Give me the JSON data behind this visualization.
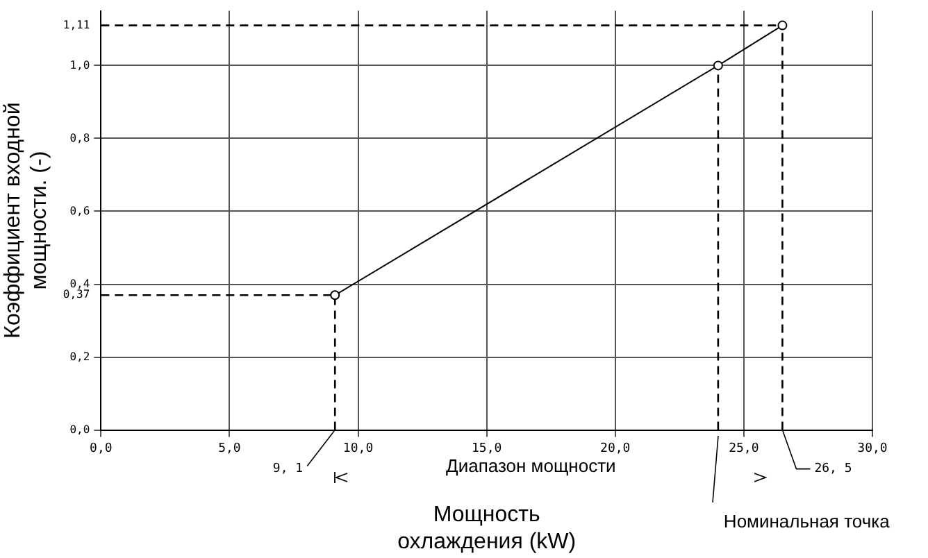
{
  "chart_data": {
    "type": "line",
    "xlabel": "Мощность охлаждения (kW)",
    "ylabel": "Коэффициент входной мощности. (-)",
    "xlim": [
      0,
      30
    ],
    "ylim": [
      0,
      1.15
    ],
    "xticks": [
      {
        "value": 0,
        "label": "0,0"
      },
      {
        "value": 5,
        "label": "5,0"
      },
      {
        "value": 10,
        "label": "10,0"
      },
      {
        "value": 15,
        "label": "15,0"
      },
      {
        "value": 20,
        "label": "20,0"
      },
      {
        "value": 25,
        "label": "25,0"
      },
      {
        "value": 30,
        "label": "30,0"
      }
    ],
    "yticks": [
      {
        "value": 0,
        "label": "0,0"
      },
      {
        "value": 0.2,
        "label": "0,2"
      },
      {
        "value": 0.37,
        "label": "0,37"
      },
      {
        "value": 0.4,
        "label": "0,4"
      },
      {
        "value": 0.6,
        "label": "0,6"
      },
      {
        "value": 0.8,
        "label": "0,8"
      },
      {
        "value": 1.0,
        "label": "1,0"
      },
      {
        "value": 1.11,
        "label": "1,11"
      }
    ],
    "series": [
      {
        "color": "#000000",
        "x": [
          9.1,
          24,
          26.5
        ],
        "values": [
          0.37,
          1.0,
          1.11
        ]
      }
    ],
    "marker": "circle",
    "line_style": "solid",
    "grid": true,
    "legend": false,
    "ref_lines": [
      {
        "axis": "y",
        "value": 0.37,
        "line_style": "dashed"
      },
      {
        "axis": "y",
        "value": 1.11,
        "line_style": "dashed"
      },
      {
        "axis": "x",
        "value": 9.1,
        "line_style": "dashed"
      },
      {
        "axis": "x",
        "value": 24,
        "line_style": "dashed"
      },
      {
        "axis": "x",
        "value": 26.5,
        "line_style": "dashed"
      }
    ],
    "annotations": [
      {
        "text": "9, 1",
        "x": 9.1,
        "y": 0
      },
      {
        "text": "26, 5",
        "x": 26.5,
        "y": 0
      },
      "Диапазон мощности",
      "Номинальная точка"
    ]
  }
}
